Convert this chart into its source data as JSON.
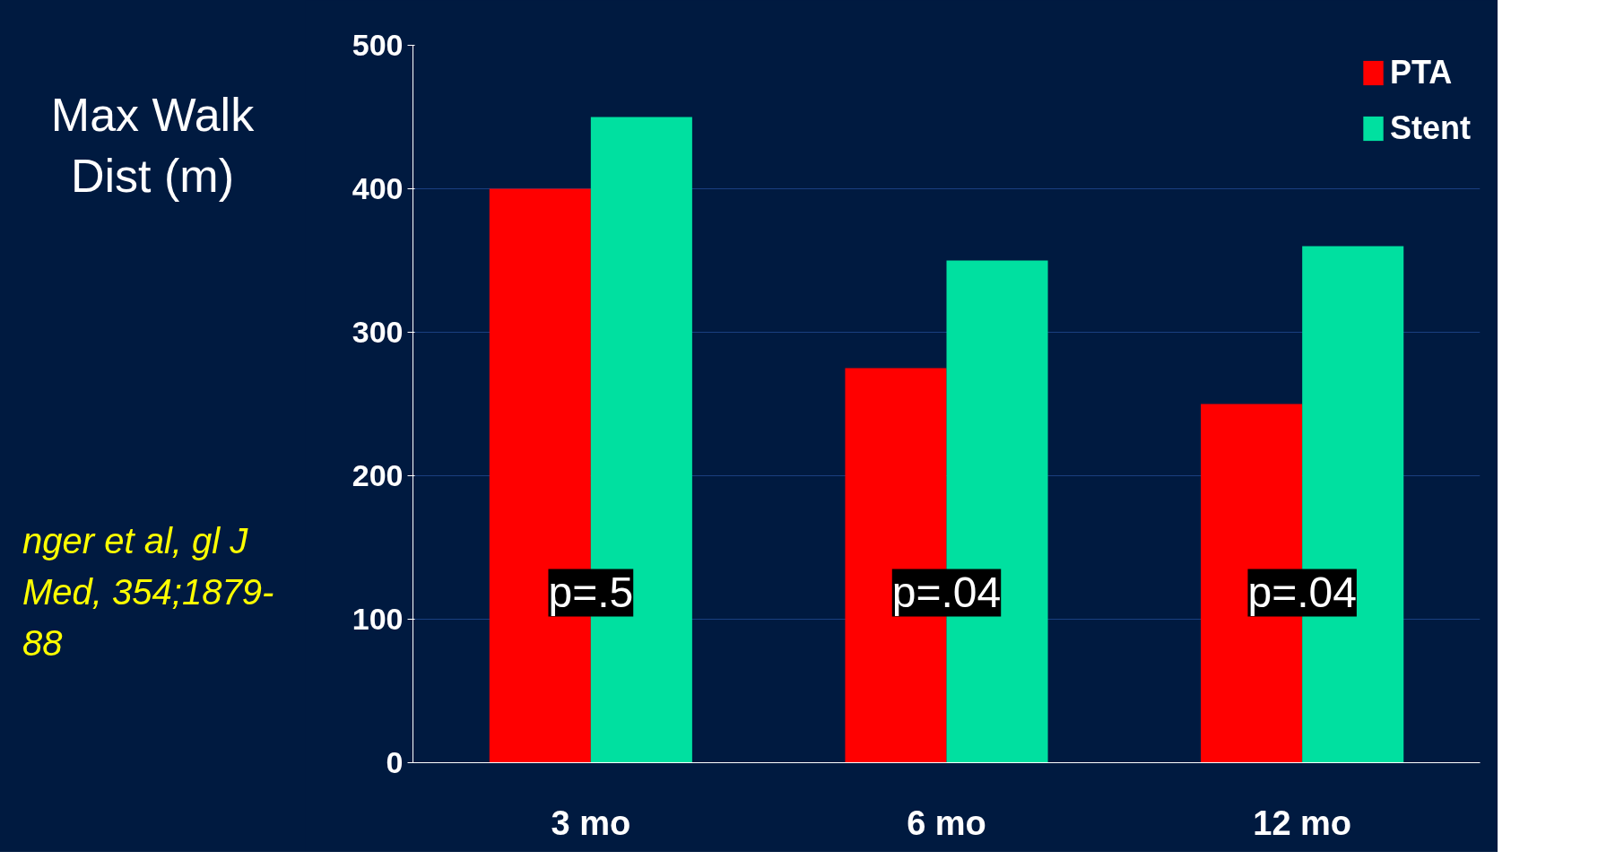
{
  "chart_data": {
    "type": "bar",
    "ylabel": "Max Walk Dist (m)",
    "categories": [
      "3 mo",
      "6 mo",
      "12 mo"
    ],
    "series": [
      {
        "name": "PTA",
        "color": "#ff0000",
        "values": [
          400,
          275,
          250
        ]
      },
      {
        "name": "Stent",
        "color": "#00e0a0",
        "values": [
          450,
          350,
          360
        ]
      }
    ],
    "ylim": [
      0,
      500
    ],
    "yticks": [
      0,
      100,
      200,
      300,
      400,
      500
    ],
    "grid": "y",
    "legend": "top right",
    "annotations": [
      {
        "text": "p=.5",
        "x": "3 mo"
      },
      {
        "text": "p=.04",
        "x": "6 mo"
      },
      {
        "text": "p=.04",
        "x": "12 mo"
      },
      "nger et al, gl J Med, 354;1879-88"
    ]
  }
}
